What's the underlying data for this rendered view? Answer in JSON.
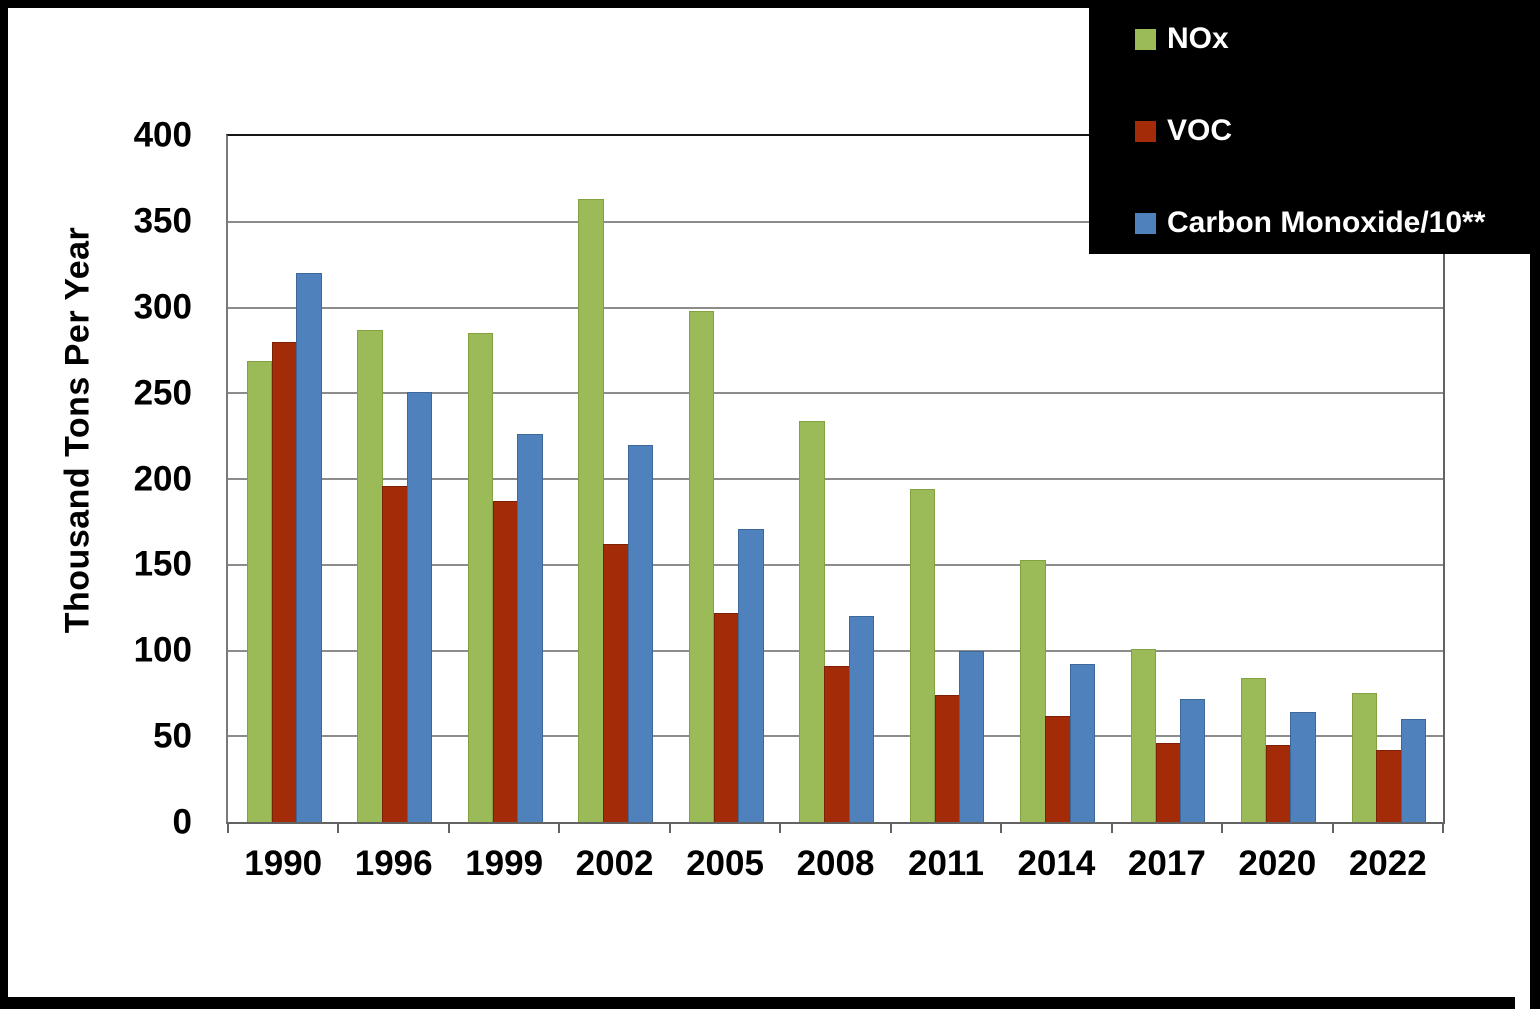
{
  "chart_data": {
    "type": "bar",
    "categories": [
      "1990",
      "1996",
      "1999",
      "2002",
      "2005",
      "2008",
      "2011",
      "2014",
      "2017",
      "2020",
      "2022"
    ],
    "series": [
      {
        "key": "nox",
        "name": "NOx",
        "color": "#9BBB59",
        "border": "#83A140",
        "values": [
          269,
          287,
          285,
          363,
          298,
          234,
          194,
          153,
          101,
          84,
          75
        ]
      },
      {
        "key": "voc",
        "name": "VOC",
        "color": "#A32B08",
        "border": "#7E2004",
        "values": [
          280,
          196,
          187,
          162,
          122,
          91,
          74,
          62,
          46,
          45,
          42
        ]
      },
      {
        "key": "co",
        "name": "Carbon Monoxide/10**",
        "color": "#4F81BD",
        "border": "#3D6899",
        "values": [
          320,
          251,
          226,
          220,
          171,
          120,
          100,
          92,
          72,
          64,
          60
        ]
      }
    ],
    "ylabel": "Thousand Tons Per Year",
    "ylim": [
      0,
      400
    ],
    "ytick_step": 50,
    "grid": true,
    "legend_position": "top-right"
  },
  "y_axis": {
    "ticks": [
      "400",
      "350",
      "300",
      "250",
      "200",
      "150",
      "100",
      "50",
      "0"
    ]
  },
  "colors": {
    "frame": "#000000",
    "plot_background": "#FFFFFF",
    "gridline": "#8C8C8C",
    "axis_line": "#636363",
    "label_text": "#000000",
    "legend_background": "#000000",
    "legend_text": "#FFFFFF"
  }
}
